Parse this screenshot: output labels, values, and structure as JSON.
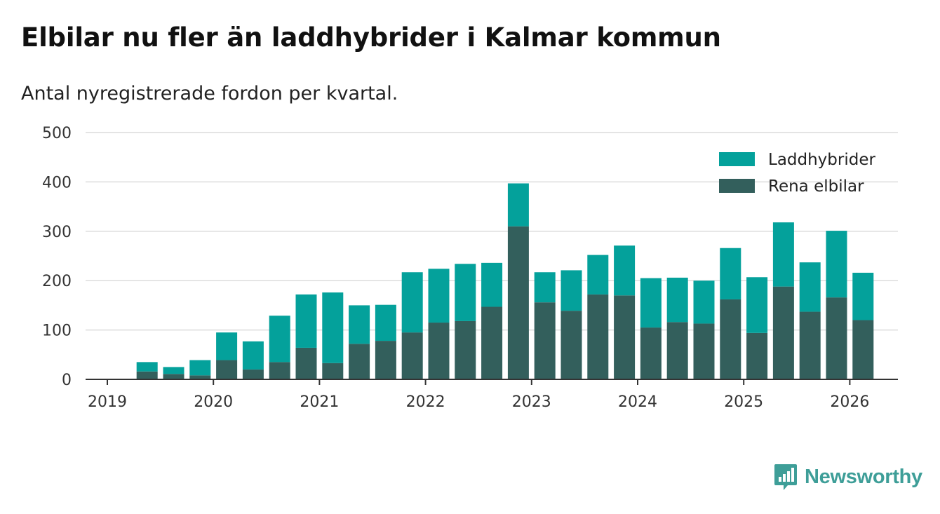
{
  "header": {
    "title": "Elbilar nu fler än laddhybrider i Kalmar kommun",
    "subtitle": "Antal nyregistrerade fordon per kvartal."
  },
  "brand": {
    "name": "Newsworthy",
    "logo_icon": "bar-chart-speech-bubble-icon",
    "color": "#3e9e98"
  },
  "chart_data": {
    "type": "bar",
    "stacked": true,
    "title": "Elbilar nu fler än laddhybrider i Kalmar kommun",
    "subtitle": "Antal nyregistrerade fordon per kvartal.",
    "xlabel": "",
    "ylabel": "",
    "ylim": [
      0,
      500
    ],
    "yticks": [
      "0",
      "100",
      "200",
      "300",
      "400",
      "500"
    ],
    "xticks": [
      "2019",
      "2020",
      "2021",
      "2022",
      "2023",
      "2024",
      "2025",
      "2026"
    ],
    "categories": [
      "2019 Q2",
      "2019 Q3",
      "2019 Q4",
      "2020 Q1",
      "2020 Q2",
      "2020 Q3",
      "2020 Q4",
      "2021 Q1",
      "2021 Q2",
      "2021 Q3",
      "2021 Q4",
      "2022 Q1",
      "2022 Q2",
      "2022 Q3",
      "2022 Q4",
      "2023 Q1",
      "2023 Q2",
      "2023 Q3",
      "2023 Q4",
      "2024 Q1",
      "2024 Q2",
      "2024 Q3",
      "2024 Q4",
      "2025 Q1",
      "2025 Q2",
      "2025 Q3",
      "2025 Q4",
      "2026 Q1"
    ],
    "series": [
      {
        "name": "Rena elbilar",
        "color": "#335f5c",
        "values": [
          16,
          11,
          8,
          39,
          20,
          35,
          64,
          33,
          72,
          78,
          95,
          115,
          118,
          147,
          310,
          156,
          139,
          172,
          170,
          105,
          116,
          113,
          162,
          94,
          188,
          137,
          166,
          120
        ]
      },
      {
        "name": "Laddhybrider",
        "color": "#04a19b",
        "values": [
          19,
          14,
          31,
          56,
          57,
          94,
          108,
          143,
          78,
          73,
          122,
          109,
          116,
          89,
          87,
          61,
          82,
          80,
          101,
          100,
          90,
          87,
          104,
          113,
          130,
          100,
          135,
          96
        ]
      }
    ],
    "legend": [
      "Laddhybrider",
      "Rena elbilar"
    ],
    "legend_position": "top-right",
    "grid": true
  }
}
